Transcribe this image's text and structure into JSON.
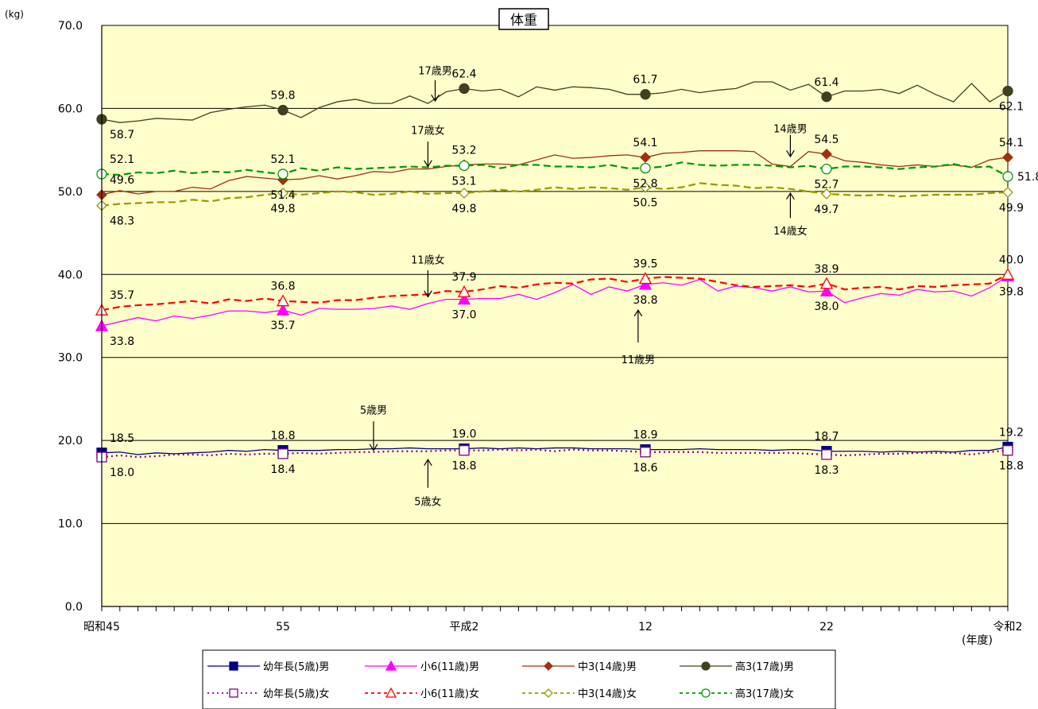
{
  "chart_data": {
    "type": "line",
    "title": "体重",
    "ylabel": "(kg)",
    "xlabel": "(年度)",
    "ylim": [
      0,
      70
    ],
    "yticks": [
      "0.0",
      "10.0",
      "20.0",
      "30.0",
      "40.0",
      "50.0",
      "60.0",
      "70.0"
    ],
    "xticks": [
      {
        "year": 1970,
        "label": "昭和45"
      },
      {
        "year": 1980,
        "label": "55"
      },
      {
        "year": 1990,
        "label": "平成2"
      },
      {
        "year": 2000,
        "label": "12"
      },
      {
        "year": 2010,
        "label": "22"
      },
      {
        "year": 2020,
        "label": "令和2"
      }
    ],
    "years": [
      1970,
      1971,
      1972,
      1973,
      1974,
      1975,
      1976,
      1977,
      1978,
      1979,
      1980,
      1981,
      1982,
      1983,
      1984,
      1985,
      1986,
      1987,
      1988,
      1989,
      1990,
      1991,
      1992,
      1993,
      1994,
      1995,
      1996,
      1997,
      1998,
      1999,
      2000,
      2001,
      2002,
      2003,
      2004,
      2005,
      2006,
      2007,
      2008,
      2009,
      2010,
      2011,
      2012,
      2013,
      2014,
      2015,
      2016,
      2017,
      2018,
      2019,
      2020
    ],
    "grid": true,
    "plot_background": "#ffffcc",
    "legend_position": "bottom",
    "series": [
      {
        "name": "幼年長(5歳)男",
        "color": "#000080",
        "dash": "",
        "marker": "square",
        "filled": true,
        "values": [
          18.5,
          18.6,
          18.3,
          18.5,
          18.4,
          18.5,
          18.6,
          18.8,
          18.7,
          18.9,
          18.8,
          18.8,
          18.8,
          18.9,
          18.9,
          19.0,
          19.0,
          19.1,
          19.0,
          19.0,
          19.0,
          19.1,
          19.0,
          19.1,
          19.0,
          19.1,
          19.1,
          19.0,
          19.0,
          19.0,
          18.9,
          18.9,
          18.9,
          19.0,
          18.9,
          18.9,
          18.9,
          18.8,
          18.9,
          18.9,
          18.7,
          18.7,
          18.7,
          18.6,
          18.7,
          18.6,
          18.7,
          18.6,
          18.8,
          18.8,
          19.2
        ],
        "labels": [
          {
            "year": 1970,
            "text": "18.5",
            "pos": "above"
          },
          {
            "year": 1980,
            "text": "18.8",
            "pos": "above"
          },
          {
            "year": 1990,
            "text": "19.0",
            "pos": "above"
          },
          {
            "year": 2000,
            "text": "18.9",
            "pos": "above"
          },
          {
            "year": 2010,
            "text": "18.7",
            "pos": "above"
          },
          {
            "year": 2020,
            "text": "19.2",
            "pos": "above"
          }
        ]
      },
      {
        "name": "小6(11歳)男",
        "color": "#ff00ff",
        "dash": "",
        "marker": "triangle",
        "filled": true,
        "values": [
          33.8,
          34.3,
          34.8,
          34.4,
          35.0,
          34.7,
          35.1,
          35.6,
          35.6,
          35.4,
          35.7,
          35.1,
          35.9,
          35.8,
          35.8,
          35.9,
          36.2,
          35.8,
          36.5,
          37.0,
          37.0,
          37.1,
          37.1,
          37.6,
          37.0,
          37.8,
          38.8,
          37.6,
          38.5,
          38.0,
          38.8,
          39.0,
          38.7,
          39.4,
          38.0,
          38.6,
          38.4,
          38.0,
          38.5,
          37.9,
          38.0,
          36.6,
          37.2,
          37.7,
          37.5,
          38.2,
          37.9,
          38.0,
          37.4,
          38.4,
          39.8
        ],
        "labels": [
          {
            "year": 1970,
            "text": "33.8",
            "pos": "below"
          },
          {
            "year": 1980,
            "text": "35.7",
            "pos": "below"
          },
          {
            "year": 1990,
            "text": "37.0",
            "pos": "below"
          },
          {
            "year": 2000,
            "text": "38.8",
            "pos": "below"
          },
          {
            "year": 2010,
            "text": "38.0",
            "pos": "below"
          },
          {
            "year": 2020,
            "text": "39.8",
            "pos": "below"
          }
        ]
      },
      {
        "name": "中3(14歳)男",
        "color": "#a03010",
        "dash": "",
        "marker": "diamond",
        "filled": true,
        "values": [
          49.6,
          50.1,
          49.7,
          50.0,
          50.0,
          50.5,
          50.3,
          51.3,
          51.8,
          51.6,
          51.4,
          51.5,
          51.9,
          51.5,
          51.9,
          52.4,
          52.3,
          52.7,
          52.7,
          53.0,
          53.2,
          53.3,
          53.3,
          53.2,
          53.8,
          54.4,
          54.0,
          54.1,
          54.3,
          54.4,
          54.1,
          54.6,
          54.7,
          54.9,
          54.9,
          54.9,
          54.8,
          53.3,
          53.0,
          54.8,
          54.5,
          53.7,
          53.5,
          53.2,
          53.0,
          53.2,
          53.0,
          53.2,
          52.9,
          53.8,
          54.1
        ],
        "labels": [
          {
            "year": 1970,
            "text": "49.6",
            "pos": "above"
          },
          {
            "year": 1980,
            "text": "51.4",
            "pos": "below"
          },
          {
            "year": 1990,
            "text": "53.2",
            "pos": "above"
          },
          {
            "year": 2000,
            "text": "54.1",
            "pos": "above"
          },
          {
            "year": 2010,
            "text": "54.5",
            "pos": "above"
          },
          {
            "year": 2020,
            "text": "54.1",
            "pos": "above"
          }
        ]
      },
      {
        "name": "高3(17歳)男",
        "color": "#404020",
        "dash": "",
        "marker": "circle",
        "filled": true,
        "values": [
          58.7,
          58.3,
          58.5,
          58.8,
          58.7,
          58.6,
          59.5,
          59.9,
          60.2,
          60.4,
          59.8,
          58.9,
          60.1,
          60.8,
          61.1,
          60.6,
          60.6,
          61.5,
          60.6,
          62.0,
          62.4,
          62.1,
          62.3,
          61.4,
          62.6,
          62.2,
          62.6,
          62.5,
          62.3,
          61.7,
          61.7,
          61.9,
          62.3,
          61.9,
          62.2,
          62.4,
          63.2,
          63.2,
          62.2,
          62.9,
          61.4,
          62.1,
          62.1,
          62.3,
          61.8,
          62.8,
          61.7,
          60.8,
          63.0,
          60.8,
          62.1
        ],
        "labels": [
          {
            "year": 1970,
            "text": "58.7",
            "pos": "below"
          },
          {
            "year": 1980,
            "text": "59.8",
            "pos": "above"
          },
          {
            "year": 1990,
            "text": "62.4",
            "pos": "above"
          },
          {
            "year": 2000,
            "text": "61.7",
            "pos": "above"
          },
          {
            "year": 2010,
            "text": "61.4",
            "pos": "above"
          },
          {
            "year": 2020,
            "text": "62.1",
            "pos": "below"
          }
        ]
      },
      {
        "name": "幼年長(5歳)女",
        "color": "#800080",
        "dash": "2,4",
        "marker": "square",
        "filled": false,
        "values": [
          18.0,
          18.2,
          18.0,
          18.1,
          18.3,
          18.3,
          18.2,
          18.4,
          18.3,
          18.4,
          18.4,
          18.5,
          18.4,
          18.5,
          18.6,
          18.6,
          18.7,
          18.7,
          18.7,
          18.8,
          18.8,
          18.8,
          18.9,
          18.8,
          18.9,
          18.7,
          18.9,
          18.8,
          18.8,
          18.7,
          18.6,
          18.6,
          18.6,
          18.6,
          18.5,
          18.5,
          18.5,
          18.5,
          18.5,
          18.4,
          18.3,
          18.2,
          18.3,
          18.4,
          18.4,
          18.5,
          18.5,
          18.5,
          18.3,
          18.6,
          18.8
        ],
        "labels": [
          {
            "year": 1970,
            "text": "18.0",
            "pos": "below"
          },
          {
            "year": 1980,
            "text": "18.4",
            "pos": "below"
          },
          {
            "year": 1990,
            "text": "18.8",
            "pos": "below"
          },
          {
            "year": 2000,
            "text": "18.6",
            "pos": "below"
          },
          {
            "year": 2010,
            "text": "18.3",
            "pos": "below"
          },
          {
            "year": 2020,
            "text": "18.8",
            "pos": "below"
          }
        ]
      },
      {
        "name": "小6(11歳)女",
        "color": "#ff0000",
        "dash": "9,5",
        "marker": "triangle",
        "filled": false,
        "values": [
          35.7,
          36.1,
          36.3,
          36.4,
          36.6,
          36.8,
          36.5,
          37.0,
          36.8,
          37.1,
          36.8,
          36.7,
          36.6,
          36.9,
          36.9,
          37.2,
          37.4,
          37.5,
          37.6,
          38.0,
          37.9,
          38.2,
          38.6,
          38.4,
          38.8,
          39.0,
          38.9,
          39.4,
          39.5,
          39.1,
          39.5,
          39.7,
          39.6,
          39.5,
          39.1,
          38.7,
          38.5,
          38.6,
          38.7,
          38.5,
          38.9,
          38.2,
          38.4,
          38.5,
          38.2,
          38.6,
          38.5,
          38.7,
          38.8,
          38.9,
          40.0
        ],
        "labels": [
          {
            "year": 1970,
            "text": "35.7",
            "pos": "above"
          },
          {
            "year": 1980,
            "text": "36.8",
            "pos": "above"
          },
          {
            "year": 1990,
            "text": "37.9",
            "pos": "above"
          },
          {
            "year": 2000,
            "text": "39.5",
            "pos": "above"
          },
          {
            "year": 2010,
            "text": "38.9",
            "pos": "above"
          },
          {
            "year": 2020,
            "text": "40.0",
            "pos": "above"
          }
        ]
      },
      {
        "name": "中3(14歳)女",
        "color": "#999900",
        "dash": "9,5",
        "marker": "diamond",
        "filled": false,
        "values": [
          48.3,
          48.5,
          48.6,
          48.7,
          48.7,
          49.0,
          48.8,
          49.2,
          49.3,
          49.6,
          49.8,
          49.6,
          49.8,
          50.0,
          49.9,
          49.6,
          49.7,
          50.0,
          49.7,
          49.8,
          49.8,
          50.0,
          50.2,
          50.0,
          50.2,
          50.5,
          50.3,
          50.5,
          50.4,
          50.2,
          50.5,
          50.3,
          50.5,
          51.0,
          50.8,
          50.7,
          50.4,
          50.5,
          50.3,
          50.0,
          49.7,
          49.6,
          49.5,
          49.6,
          49.4,
          49.5,
          49.6,
          49.6,
          49.6,
          49.8,
          49.9
        ],
        "labels": [
          {
            "year": 1970,
            "text": "48.3",
            "pos": "below"
          },
          {
            "year": 1980,
            "text": "49.8",
            "pos": "below"
          },
          {
            "year": 1990,
            "text": "49.8",
            "pos": "below"
          },
          {
            "year": 2000,
            "text": "50.5",
            "pos": "below"
          },
          {
            "year": 2010,
            "text": "49.7",
            "pos": "below"
          },
          {
            "year": 2020,
            "text": "49.9",
            "pos": "below"
          }
        ]
      },
      {
        "name": "高3(17歳)女",
        "color": "#009900",
        "dash": "9,5",
        "marker": "circle",
        "filled": false,
        "values": [
          52.1,
          52.0,
          52.3,
          52.2,
          52.5,
          52.2,
          52.4,
          52.3,
          52.6,
          52.3,
          52.1,
          52.8,
          52.5,
          52.9,
          52.7,
          52.8,
          52.9,
          53.0,
          52.9,
          53.1,
          53.1,
          53.2,
          52.8,
          53.2,
          53.2,
          53.0,
          53.0,
          52.9,
          53.2,
          52.8,
          52.8,
          53.0,
          53.5,
          53.2,
          53.1,
          53.2,
          53.2,
          53.1,
          52.9,
          53.1,
          52.7,
          53.0,
          53.0,
          52.9,
          52.7,
          52.9,
          53.0,
          53.3,
          52.9,
          53.0,
          51.8
        ],
        "labels": [
          {
            "year": 1970,
            "text": "52.1",
            "pos": "above"
          },
          {
            "year": 1980,
            "text": "52.1",
            "pos": "above"
          },
          {
            "year": 1990,
            "text": "53.1",
            "pos": "below"
          },
          {
            "year": 2000,
            "text": "52.8",
            "pos": "below"
          },
          {
            "year": 2010,
            "text": "52.7",
            "pos": "below"
          },
          {
            "year": 2020,
            "text": "51.8",
            "pos": "right"
          }
        ]
      }
    ],
    "annotations": [
      {
        "text": "17歳男",
        "year": 1988.4,
        "label_value": 64.6,
        "arrow_from": 63.4,
        "arrow_to": 60.9
      },
      {
        "text": "17歳女",
        "year": 1988.0,
        "label_value": 57.4,
        "arrow_from": 56.0,
        "arrow_to": 53.0
      },
      {
        "text": "14歳男",
        "year": 2008.0,
        "label_value": 57.6,
        "arrow_from": 56.8,
        "arrow_to": 54.2
      },
      {
        "text": "14歳女",
        "year": 2008.0,
        "label_value": 45.3,
        "arrow_from": 46.8,
        "arrow_to": 49.8
      },
      {
        "text": "11歳女",
        "year": 1988.0,
        "label_value": 41.8,
        "arrow_from": 40.5,
        "arrow_to": 37.3
      },
      {
        "text": "11歳男",
        "year": 1999.6,
        "label_value": 29.8,
        "arrow_from": 31.8,
        "arrow_to": 35.7
      },
      {
        "text": "5歳男",
        "year": 1985.0,
        "label_value": 23.7,
        "arrow_from": 22.3,
        "arrow_to": 18.8
      },
      {
        "text": "5歳女",
        "year": 1988.0,
        "label_value": 12.7,
        "arrow_from": 14.3,
        "arrow_to": 17.7
      }
    ]
  }
}
